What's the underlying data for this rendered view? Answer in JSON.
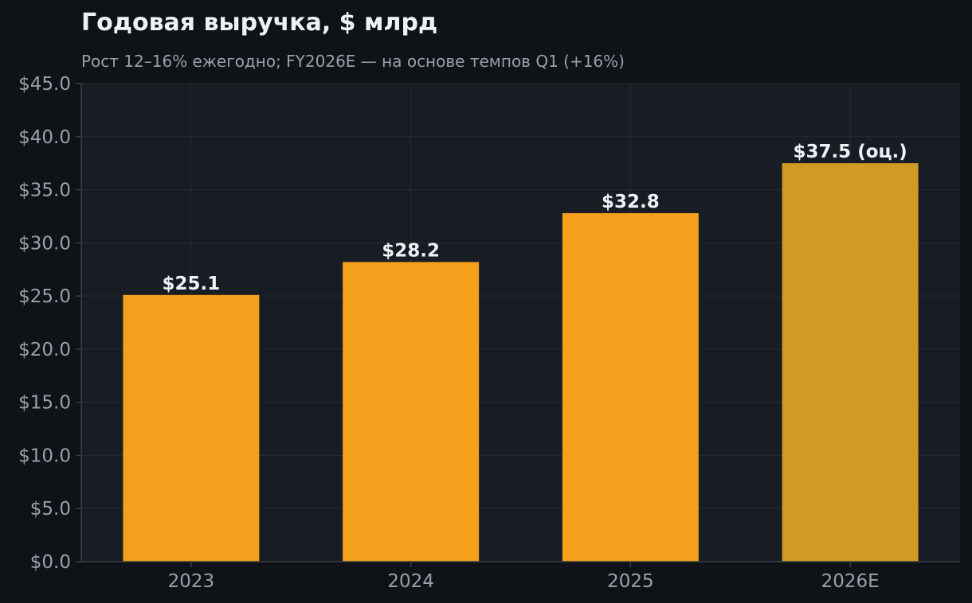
{
  "chart_data": {
    "type": "bar",
    "title": "Годовая выручка, $ млрд",
    "subtitle": "Рост 12–16% ежегодно; FY2026E — на основе темпов Q1 (+16%)",
    "xlabel": "",
    "ylabel": "",
    "categories": [
      "2023",
      "2024",
      "2025",
      "2026E"
    ],
    "values": [
      25.1,
      28.2,
      32.8,
      37.5
    ],
    "value_labels": [
      "$25.1",
      "$28.2",
      "$32.8",
      "$37.5 (оц.)"
    ],
    "estimated": [
      false,
      false,
      false,
      true
    ],
    "ylim": [
      0,
      45
    ],
    "yticks": [
      0,
      5,
      10,
      15,
      20,
      25,
      30,
      35,
      40,
      45
    ],
    "ytick_labels": [
      "$0.0",
      "$5.0",
      "$10.0",
      "$15.0",
      "$20.0",
      "$25.0",
      "$30.0",
      "$35.0",
      "$40.0",
      "$45.0"
    ],
    "grid": true,
    "legend": "none",
    "colors": {
      "page_bg": "#0f1317",
      "plot_bg": "#181c23",
      "grid": "#262b33",
      "axis": "#3a3f47",
      "bar_actual": "#f5a01d",
      "bar_estimate": "#d09b24",
      "title": "#eef1f5",
      "subtitle": "#9aa0a8",
      "tick": "#9aa0a8",
      "value_label": "#eef1f5"
    }
  }
}
